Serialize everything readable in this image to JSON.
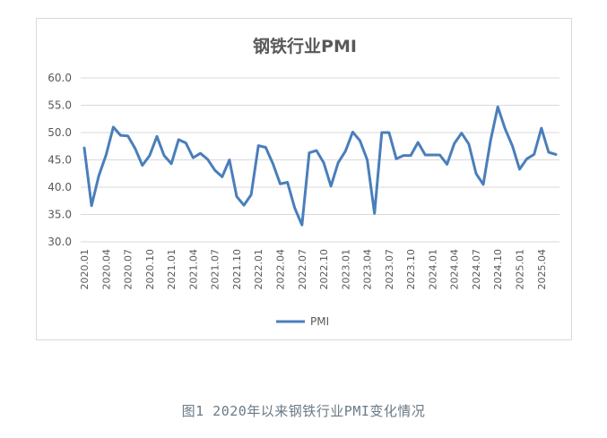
{
  "caption": "图1 2020年以来钢铁行业PMI变化情况",
  "chart_data": {
    "type": "line",
    "title": "钢铁行业PMI",
    "xlabel": "",
    "ylabel": "",
    "ylim": [
      30,
      60
    ],
    "yticks": [
      "30.0",
      "35.0",
      "40.0",
      "45.0",
      "50.0",
      "55.0",
      "60.0"
    ],
    "grid": true,
    "legend": "bottom",
    "line_color": "#4a7ebb",
    "x": [
      "2020.01",
      "2020.02",
      "2020.03",
      "2020.04",
      "2020.05",
      "2020.06",
      "2020.07",
      "2020.08",
      "2020.09",
      "2020.10",
      "2020.11",
      "2020.12",
      "2021.01",
      "2021.02",
      "2021.03",
      "2021.04",
      "2021.05",
      "2021.06",
      "2021.07",
      "2021.08",
      "2021.09",
      "2021.10",
      "2021.11",
      "2021.12",
      "2022.01",
      "2022.02",
      "2022.03",
      "2022.04",
      "2022.05",
      "2022.06",
      "2022.07",
      "2022.08",
      "2022.09",
      "2022.10",
      "2022.11",
      "2022.12",
      "2023.01",
      "2023.02",
      "2023.03",
      "2023.04",
      "2023.05",
      "2023.06",
      "2023.07",
      "2023.08",
      "2023.09",
      "2023.10",
      "2023.11",
      "2023.12",
      "2024.01",
      "2024.02",
      "2024.03",
      "2024.04",
      "2024.05",
      "2024.06",
      "2024.07",
      "2024.08",
      "2024.09",
      "2024.10",
      "2024.11",
      "2024.12",
      "2025.01",
      "2025.02",
      "2025.03",
      "2025.04",
      "2025.05",
      "2025.06"
    ],
    "series": [
      {
        "name": "PMI",
        "values": [
          47.2,
          36.6,
          42.1,
          45.9,
          51.0,
          49.5,
          49.4,
          47.1,
          44.0,
          45.8,
          49.3,
          45.8,
          44.3,
          48.7,
          48.1,
          45.4,
          46.2,
          45.1,
          43.1,
          41.9,
          45.0,
          38.3,
          36.7,
          38.6,
          47.6,
          47.3,
          44.3,
          40.6,
          40.9,
          36.2,
          33.1,
          46.3,
          46.7,
          44.5,
          40.2,
          44.5,
          46.6,
          50.1,
          48.5,
          45.0,
          35.2,
          50.0,
          50.0,
          45.2,
          45.8,
          45.8,
          48.2,
          45.9,
          45.9,
          45.9,
          44.2,
          48.0,
          49.9,
          47.9,
          42.5,
          40.5,
          48.5,
          54.7,
          50.7,
          47.6,
          43.3,
          45.2,
          46.0,
          50.8,
          46.4,
          46.0
        ]
      }
    ],
    "x_tick_labels": [
      "2020.01",
      "2020.04",
      "2020.07",
      "2020.10",
      "2021.01",
      "2021.04",
      "2021.07",
      "2021.10",
      "2022.01",
      "2022.04",
      "2022.07",
      "2022.10",
      "2023.01",
      "2023.04",
      "2023.07",
      "2023.10",
      "2024.01",
      "2024.04",
      "2024.07",
      "2024.10",
      "2025.01",
      "2025.04"
    ]
  }
}
